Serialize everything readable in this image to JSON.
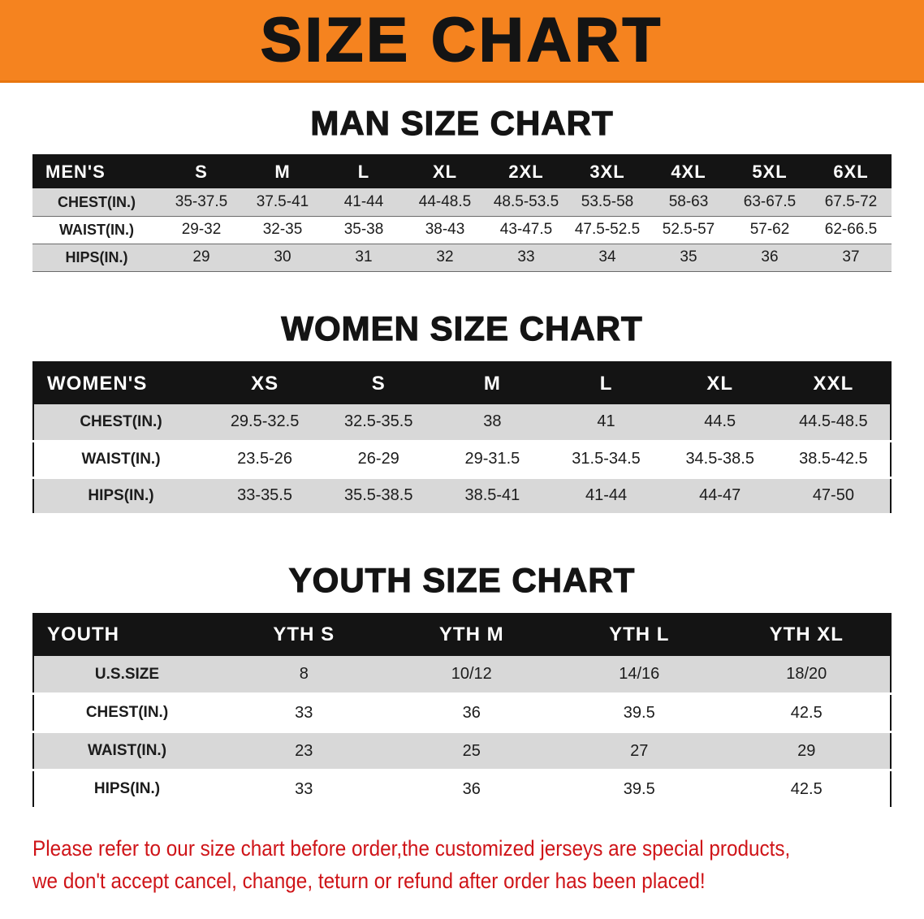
{
  "banner": {
    "title": "SIZE CHART"
  },
  "men_chart": {
    "heading": "MAN SIZE CHART",
    "header": [
      "MEN'S",
      "S",
      "M",
      "L",
      "XL",
      "2XL",
      "3XL",
      "4XL",
      "5XL",
      "6XL"
    ],
    "rows": [
      [
        "CHEST(IN.)",
        "35-37.5",
        "37.5-41",
        "41-44",
        "44-48.5",
        "48.5-53.5",
        "53.5-58",
        "58-63",
        "63-67.5",
        "67.5-72"
      ],
      [
        "WAIST(IN.)",
        "29-32",
        "32-35",
        "35-38",
        "38-43",
        "43-47.5",
        "47.5-52.5",
        "52.5-57",
        "57-62",
        "62-66.5"
      ],
      [
        "HIPS(IN.)",
        "29",
        "30",
        "31",
        "32",
        "33",
        "34",
        "35",
        "36",
        "37"
      ]
    ]
  },
  "women_chart": {
    "heading": "WOMEN SIZE CHART",
    "header": [
      "WOMEN'S",
      "XS",
      "S",
      "M",
      "L",
      "XL",
      "XXL"
    ],
    "rows": [
      [
        "CHEST(IN.)",
        "29.5-32.5",
        "32.5-35.5",
        "38",
        "41",
        "44.5",
        "44.5-48.5"
      ],
      [
        "WAIST(IN.)",
        "23.5-26",
        "26-29",
        "29-31.5",
        "31.5-34.5",
        "34.5-38.5",
        "38.5-42.5"
      ],
      [
        "HIPS(IN.)",
        "33-35.5",
        "35.5-38.5",
        "38.5-41",
        "41-44",
        "44-47",
        "47-50"
      ]
    ]
  },
  "youth_chart": {
    "heading": "YOUTH SIZE CHART",
    "header": [
      "YOUTH",
      "YTH S",
      "YTH M",
      "YTH L",
      "YTH XL"
    ],
    "rows": [
      [
        "U.S.SIZE",
        "8",
        "10/12",
        "14/16",
        "18/20"
      ],
      [
        "CHEST(IN.)",
        "33",
        "36",
        "39.5",
        "42.5"
      ],
      [
        "WAIST(IN.)",
        "23",
        "25",
        "27",
        "29"
      ],
      [
        "HIPS(IN.)",
        "33",
        "36",
        "39.5",
        "42.5"
      ]
    ]
  },
  "footer": {
    "line1": "Please refer to our size chart before order,the customized jerseys are special products,",
    "line2": "we don't accept cancel, change, teturn or refund after order has been placed!"
  },
  "colors": {
    "banner_orange": "#f5831f",
    "table_header_bg": "#141414",
    "row_stripe_grey": "#d8d8d8",
    "notice_red": "#cf1418"
  }
}
